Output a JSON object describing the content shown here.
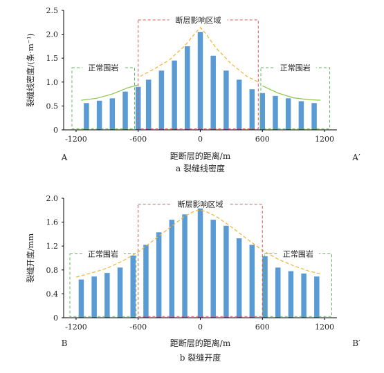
{
  "chart_data": [
    {
      "type": "bar",
      "panel_id": "a",
      "caption": "a  裂缝线密度",
      "xlabel": "距断层的距离/m",
      "ylabel": "裂缝线密度/(条·m⁻¹)",
      "xlim": [
        -1320,
        1320
      ],
      "ylim": [
        0,
        2.5
      ],
      "xticks": [
        -1200,
        -600,
        0,
        600,
        1200
      ],
      "yticks": [
        0,
        0.5,
        1.0,
        1.5,
        2.0,
        2.5
      ],
      "ytick_labels": [
        "0",
        "0.5",
        "1.0",
        "1.5",
        "2.0",
        "2.5"
      ],
      "start_label": "A",
      "end_label": "A′",
      "x": [
        -1100,
        -975,
        -850,
        -725,
        -600,
        -500,
        -375,
        -250,
        -125,
        0,
        125,
        250,
        375,
        500,
        600,
        725,
        850,
        975,
        1100
      ],
      "values": [
        0.56,
        0.61,
        0.66,
        0.8,
        0.9,
        1.05,
        1.24,
        1.45,
        1.75,
        2.05,
        1.55,
        1.24,
        1.05,
        0.85,
        0.77,
        0.71,
        0.66,
        0.6,
        0.56
      ],
      "bar_color": "#5b9bd5",
      "fit_curves": [
        {
          "style": "solid",
          "color": "#8dc44c",
          "x": [
            -1150,
            -1000,
            -850,
            -700,
            -600
          ],
          "y": [
            0.62,
            0.66,
            0.75,
            0.88,
            0.94
          ]
        },
        {
          "style": "dashed",
          "color": "#f2b233",
          "x": [
            -580,
            -450,
            -300,
            -150,
            -50,
            0,
            50,
            150,
            300,
            450,
            580
          ],
          "y": [
            1.12,
            1.27,
            1.46,
            1.76,
            2.02,
            2.14,
            2.02,
            1.72,
            1.38,
            1.12,
            0.98
          ]
        },
        {
          "style": "solid",
          "color": "#8dc44c",
          "x": [
            600,
            750,
            900,
            1050,
            1160
          ],
          "y": [
            0.92,
            0.77,
            0.67,
            0.63,
            0.62
          ]
        }
      ],
      "regions": [
        {
          "label": "正常围岩",
          "x": [
            -1240,
            -635
          ],
          "y": [
            0.02,
            1.3
          ],
          "color": "#5cb85c"
        },
        {
          "label": "断层影响区域",
          "x": [
            -600,
            560
          ],
          "y": [
            0.02,
            2.3
          ],
          "color": "#d9534f"
        },
        {
          "label": "正常围岩",
          "x": [
            585,
            1250
          ],
          "y": [
            0.02,
            1.3
          ],
          "color": "#5cb85c"
        }
      ]
    },
    {
      "type": "bar",
      "panel_id": "b",
      "caption": "b  裂缝开度",
      "xlabel": "距断层的距离/m",
      "ylabel": "裂缝开度/mm",
      "xlim": [
        -1320,
        1320
      ],
      "ylim": [
        0,
        2.0
      ],
      "xticks": [
        -1200,
        -600,
        0,
        600,
        1200
      ],
      "yticks": [
        0,
        0.4,
        0.8,
        1.2,
        1.6,
        2.0
      ],
      "ytick_labels": [
        "0",
        "0.4",
        "0.8",
        "1.2",
        "1.6",
        "2.0"
      ],
      "start_label": "B",
      "end_label": "B′",
      "x": [
        -1150,
        -1025,
        -900,
        -775,
        -650,
        -525,
        -400,
        -275,
        -150,
        0,
        125,
        250,
        375,
        500,
        625,
        750,
        875,
        1000,
        1125
      ],
      "values": [
        0.64,
        0.69,
        0.75,
        0.84,
        1.04,
        1.22,
        1.43,
        1.64,
        1.73,
        1.83,
        1.64,
        1.54,
        1.33,
        1.22,
        1.03,
        0.84,
        0.78,
        0.74,
        0.69
      ],
      "bar_color": "#5b9bd5",
      "fit_curves": [
        {
          "style": "dashed",
          "color": "#f2b233",
          "x": [
            -1200,
            -1050,
            -900,
            -750,
            -600,
            -450,
            -300,
            -150,
            -50,
            0,
            50,
            150,
            300,
            450,
            600,
            750,
            900,
            1050,
            1170
          ],
          "y": [
            0.68,
            0.75,
            0.83,
            0.95,
            1.1,
            1.3,
            1.5,
            1.7,
            1.79,
            1.8,
            1.78,
            1.7,
            1.52,
            1.32,
            1.13,
            0.98,
            0.87,
            0.78,
            0.73
          ]
        }
      ],
      "regions": [
        {
          "label": "正常围岩",
          "x": [
            -1260,
            -620
          ],
          "y": [
            0.02,
            1.07
          ],
          "color": "#5cb85c"
        },
        {
          "label": "断层影响区域",
          "x": [
            -600,
            600
          ],
          "y": [
            0.02,
            1.9
          ],
          "color": "#d9534f"
        },
        {
          "label": "正常围岩",
          "x": [
            620,
            1270
          ],
          "y": [
            0.02,
            1.07
          ],
          "color": "#5cb85c"
        }
      ]
    }
  ]
}
